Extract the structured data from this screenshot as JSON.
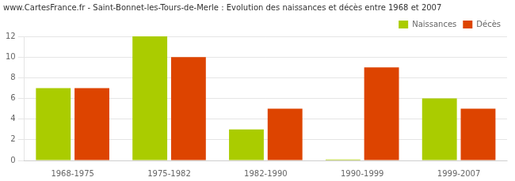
{
  "chart_data": {
    "type": "bar",
    "title": "www.CartesFrance.fr - Saint-Bonnet-les-Tours-de-Merle : Evolution des naissances et décès entre 1968 et 2007",
    "categories": [
      "1968-1975",
      "1975-1982",
      "1982-1990",
      "1990-1999",
      "1999-2007"
    ],
    "series": [
      {
        "name": "Naissances",
        "color": "#aacc00",
        "values": [
          7,
          12,
          3,
          0.1,
          6
        ]
      },
      {
        "name": "Décès",
        "color": "#dd4400",
        "values": [
          7,
          10,
          5,
          9,
          5
        ]
      }
    ],
    "ylim": [
      0,
      12
    ],
    "yticks": [
      0,
      2,
      4,
      6,
      8,
      10,
      12
    ],
    "grid": true,
    "legend": "upper right"
  }
}
